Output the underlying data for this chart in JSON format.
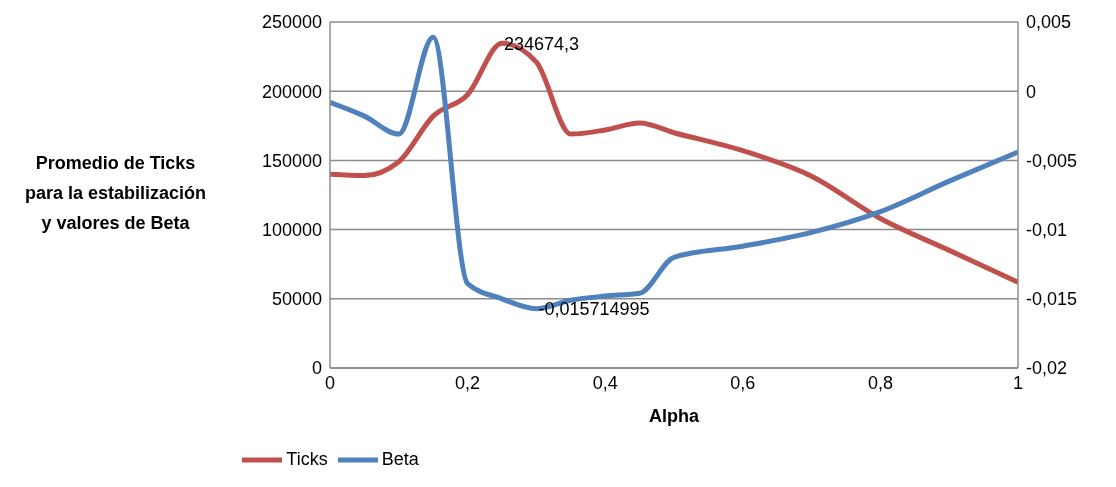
{
  "chart_data": {
    "type": "line",
    "xlabel": "Alpha",
    "ylabel": "Promedio de Ticks para la estabilización y valores de Beta",
    "x": [
      0,
      0.05,
      0.1,
      0.15,
      0.2,
      0.25,
      0.3,
      0.35,
      0.4,
      0.45,
      0.5,
      0.6,
      0.7,
      0.8,
      0.9,
      1
    ],
    "series": [
      {
        "name": "Ticks",
        "color": "#c0504d",
        "values": [
          140000,
          139000,
          149000,
          182000,
          197500,
          234674.3,
          221000,
          169000,
          172000,
          177000,
          170000,
          157000,
          138600,
          108000,
          85000,
          62000
        ],
        "value_labels": [
          null,
          null,
          null,
          null,
          null,
          "234674,3",
          null,
          null,
          null,
          null,
          null,
          null,
          null,
          null,
          null,
          null
        ]
      },
      {
        "name": "Beta",
        "color": "#4f81bd",
        "axis": "y2",
        "values": [
          -0.0008,
          -0.0018,
          -0.0031,
          0.0039,
          -0.0139,
          -0.015,
          -0.015714995,
          -0.0151,
          -0.0148,
          -0.0146,
          -0.012,
          -0.0112,
          -0.0102,
          -0.0087,
          -0.0065,
          -0.0044
        ],
        "value_labels": [
          null,
          null,
          null,
          null,
          null,
          null,
          "-0,015714995",
          null,
          null,
          null,
          null,
          null,
          null,
          null,
          null,
          null
        ]
      }
    ],
    "xlim": [
      0,
      1
    ],
    "xticks": [
      0,
      {
        "value": 0.2,
        "label": "0,2"
      },
      {
        "value": 0.4,
        "label": "0,4"
      },
      {
        "value": 0.6,
        "label": "0,6"
      },
      {
        "value": 0.8,
        "label": "0,8"
      },
      1
    ],
    "ylim": [
      0,
      250000
    ],
    "yticks": [
      0,
      50000,
      100000,
      150000,
      200000,
      250000
    ],
    "y2lim": [
      -0.02,
      0.005
    ],
    "y2ticks": [
      {
        "value": -0.02,
        "label": "-0,02"
      },
      {
        "value": -0.015,
        "label": "-0,015"
      },
      {
        "value": -0.01,
        "label": "-0,01"
      },
      {
        "value": -0.005,
        "label": "-0,005"
      },
      0,
      {
        "value": 0.005,
        "label": "0,005"
      }
    ],
    "grid": "y",
    "legend": "bottom",
    "marker": "none",
    "line_style": "solid"
  }
}
